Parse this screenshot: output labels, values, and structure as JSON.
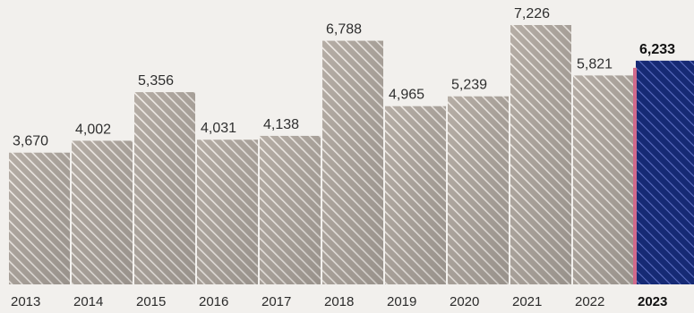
{
  "chart_data": {
    "type": "bar",
    "title": "",
    "xlabel": "",
    "ylabel": "",
    "categories": [
      "2013",
      "2014",
      "2015",
      "2016",
      "2017",
      "2018",
      "2019",
      "2020",
      "2021",
      "2022",
      "2023"
    ],
    "value_labels": [
      "3,670",
      "4,002",
      "5,356",
      "4,031",
      "4,138",
      "6,788",
      "4,965",
      "5,239",
      "7,226",
      "5,821",
      "6,233"
    ],
    "values": [
      3670,
      4002,
      5356,
      4031,
      4138,
      6788,
      4965,
      5239,
      7226,
      5821,
      6233
    ],
    "ylim": [
      0,
      7226
    ],
    "grid": false,
    "highlight_category": "2023",
    "colors": {
      "background": "#f2f0ed",
      "bar_base": "#b5ada5",
      "bar_hatch": "#f4efea",
      "bar_shade": "#9e9993",
      "highlight_fill": "#162a74",
      "highlight_hatch": "#5a6cc0",
      "highlight_edge": "#d06a8b"
    }
  }
}
